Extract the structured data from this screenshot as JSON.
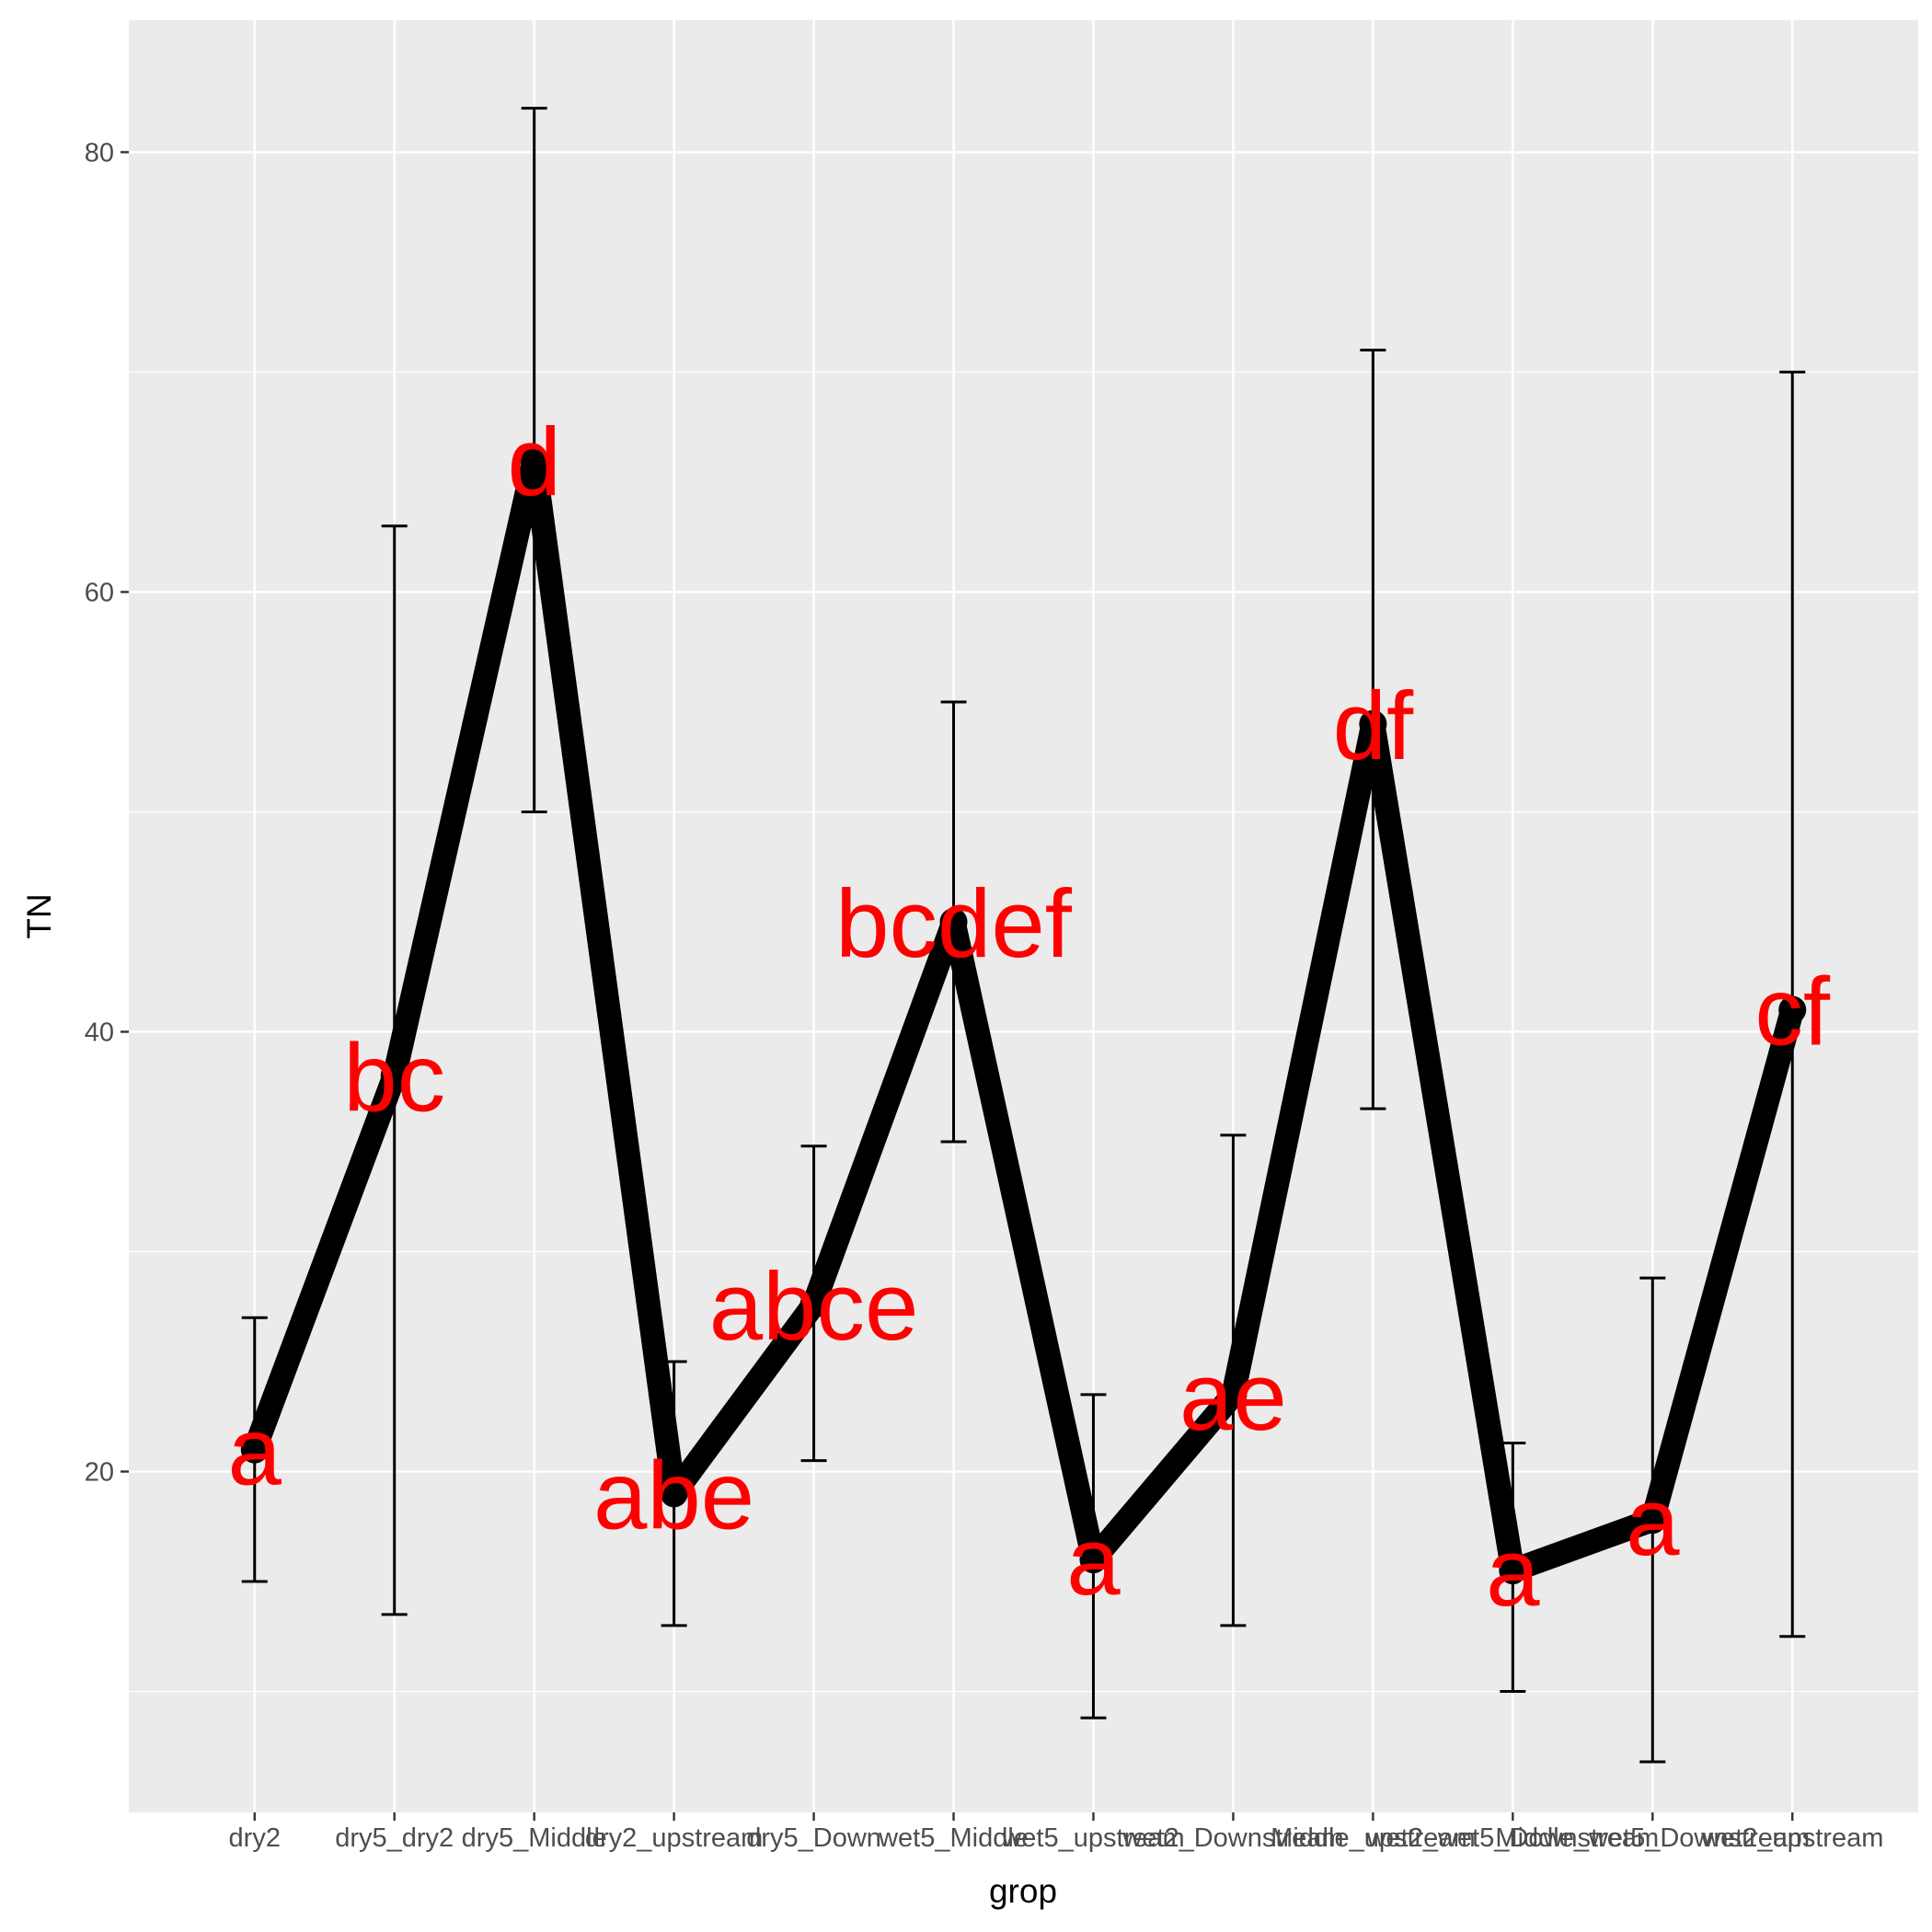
{
  "chart_data": {
    "type": "line",
    "xlabel": "grop",
    "ylabel": "TN",
    "ylim": [
      4.5,
      86.0
    ],
    "y_ticks": [
      20,
      40,
      60,
      80
    ],
    "grid": true,
    "legend": "none",
    "categories": [
      "dry2",
      "dry5_dry2",
      "dry5_Middle",
      "dry2_upstream",
      "dry5_Down",
      "wet5_Middle",
      "wet5_upstream",
      "wet2_Downstream",
      "Middle_upstream",
      "wet2_wet5_Downstream",
      "Middle_wet5_Downstream",
      "wet2_upstream"
    ],
    "x_tick_labels": [
      "dry2",
      "dry5_dry2",
      "dry5_Middle",
      "dry2_upstream",
      "dry5_Down",
      "wet5_Middle",
      "wet5_upstream",
      "wet2_Downstream",
      "Middle_upstream",
      "wet2_wet5_Downstream",
      "Middle_wet5_Downstream",
      "wet2_upstream"
    ],
    "series": [
      {
        "values": [
          21.0,
          38.0,
          66.0,
          19.0,
          27.6,
          45.0,
          16.0,
          23.5,
          54.0,
          15.5,
          17.8,
          41.0
        ],
        "ymin": [
          15.0,
          13.5,
          50.0,
          13.0,
          20.5,
          35.0,
          8.8,
          13.0,
          36.5,
          10.0,
          6.8,
          12.5
        ],
        "ymax": [
          27.0,
          63.0,
          82.0,
          25.0,
          34.8,
          55.0,
          23.5,
          35.3,
          71.0,
          21.3,
          28.8,
          70.0
        ],
        "labels": [
          "a",
          "bc",
          "d",
          "abe",
          "abce",
          "bcdef",
          "a",
          "ae",
          "df",
          "a",
          "a",
          "cf"
        ]
      }
    ],
    "colors": {
      "line": "#000000",
      "labels": "#FF0000",
      "panel": "#EBEBEB",
      "grid": "#FFFFFF"
    }
  }
}
